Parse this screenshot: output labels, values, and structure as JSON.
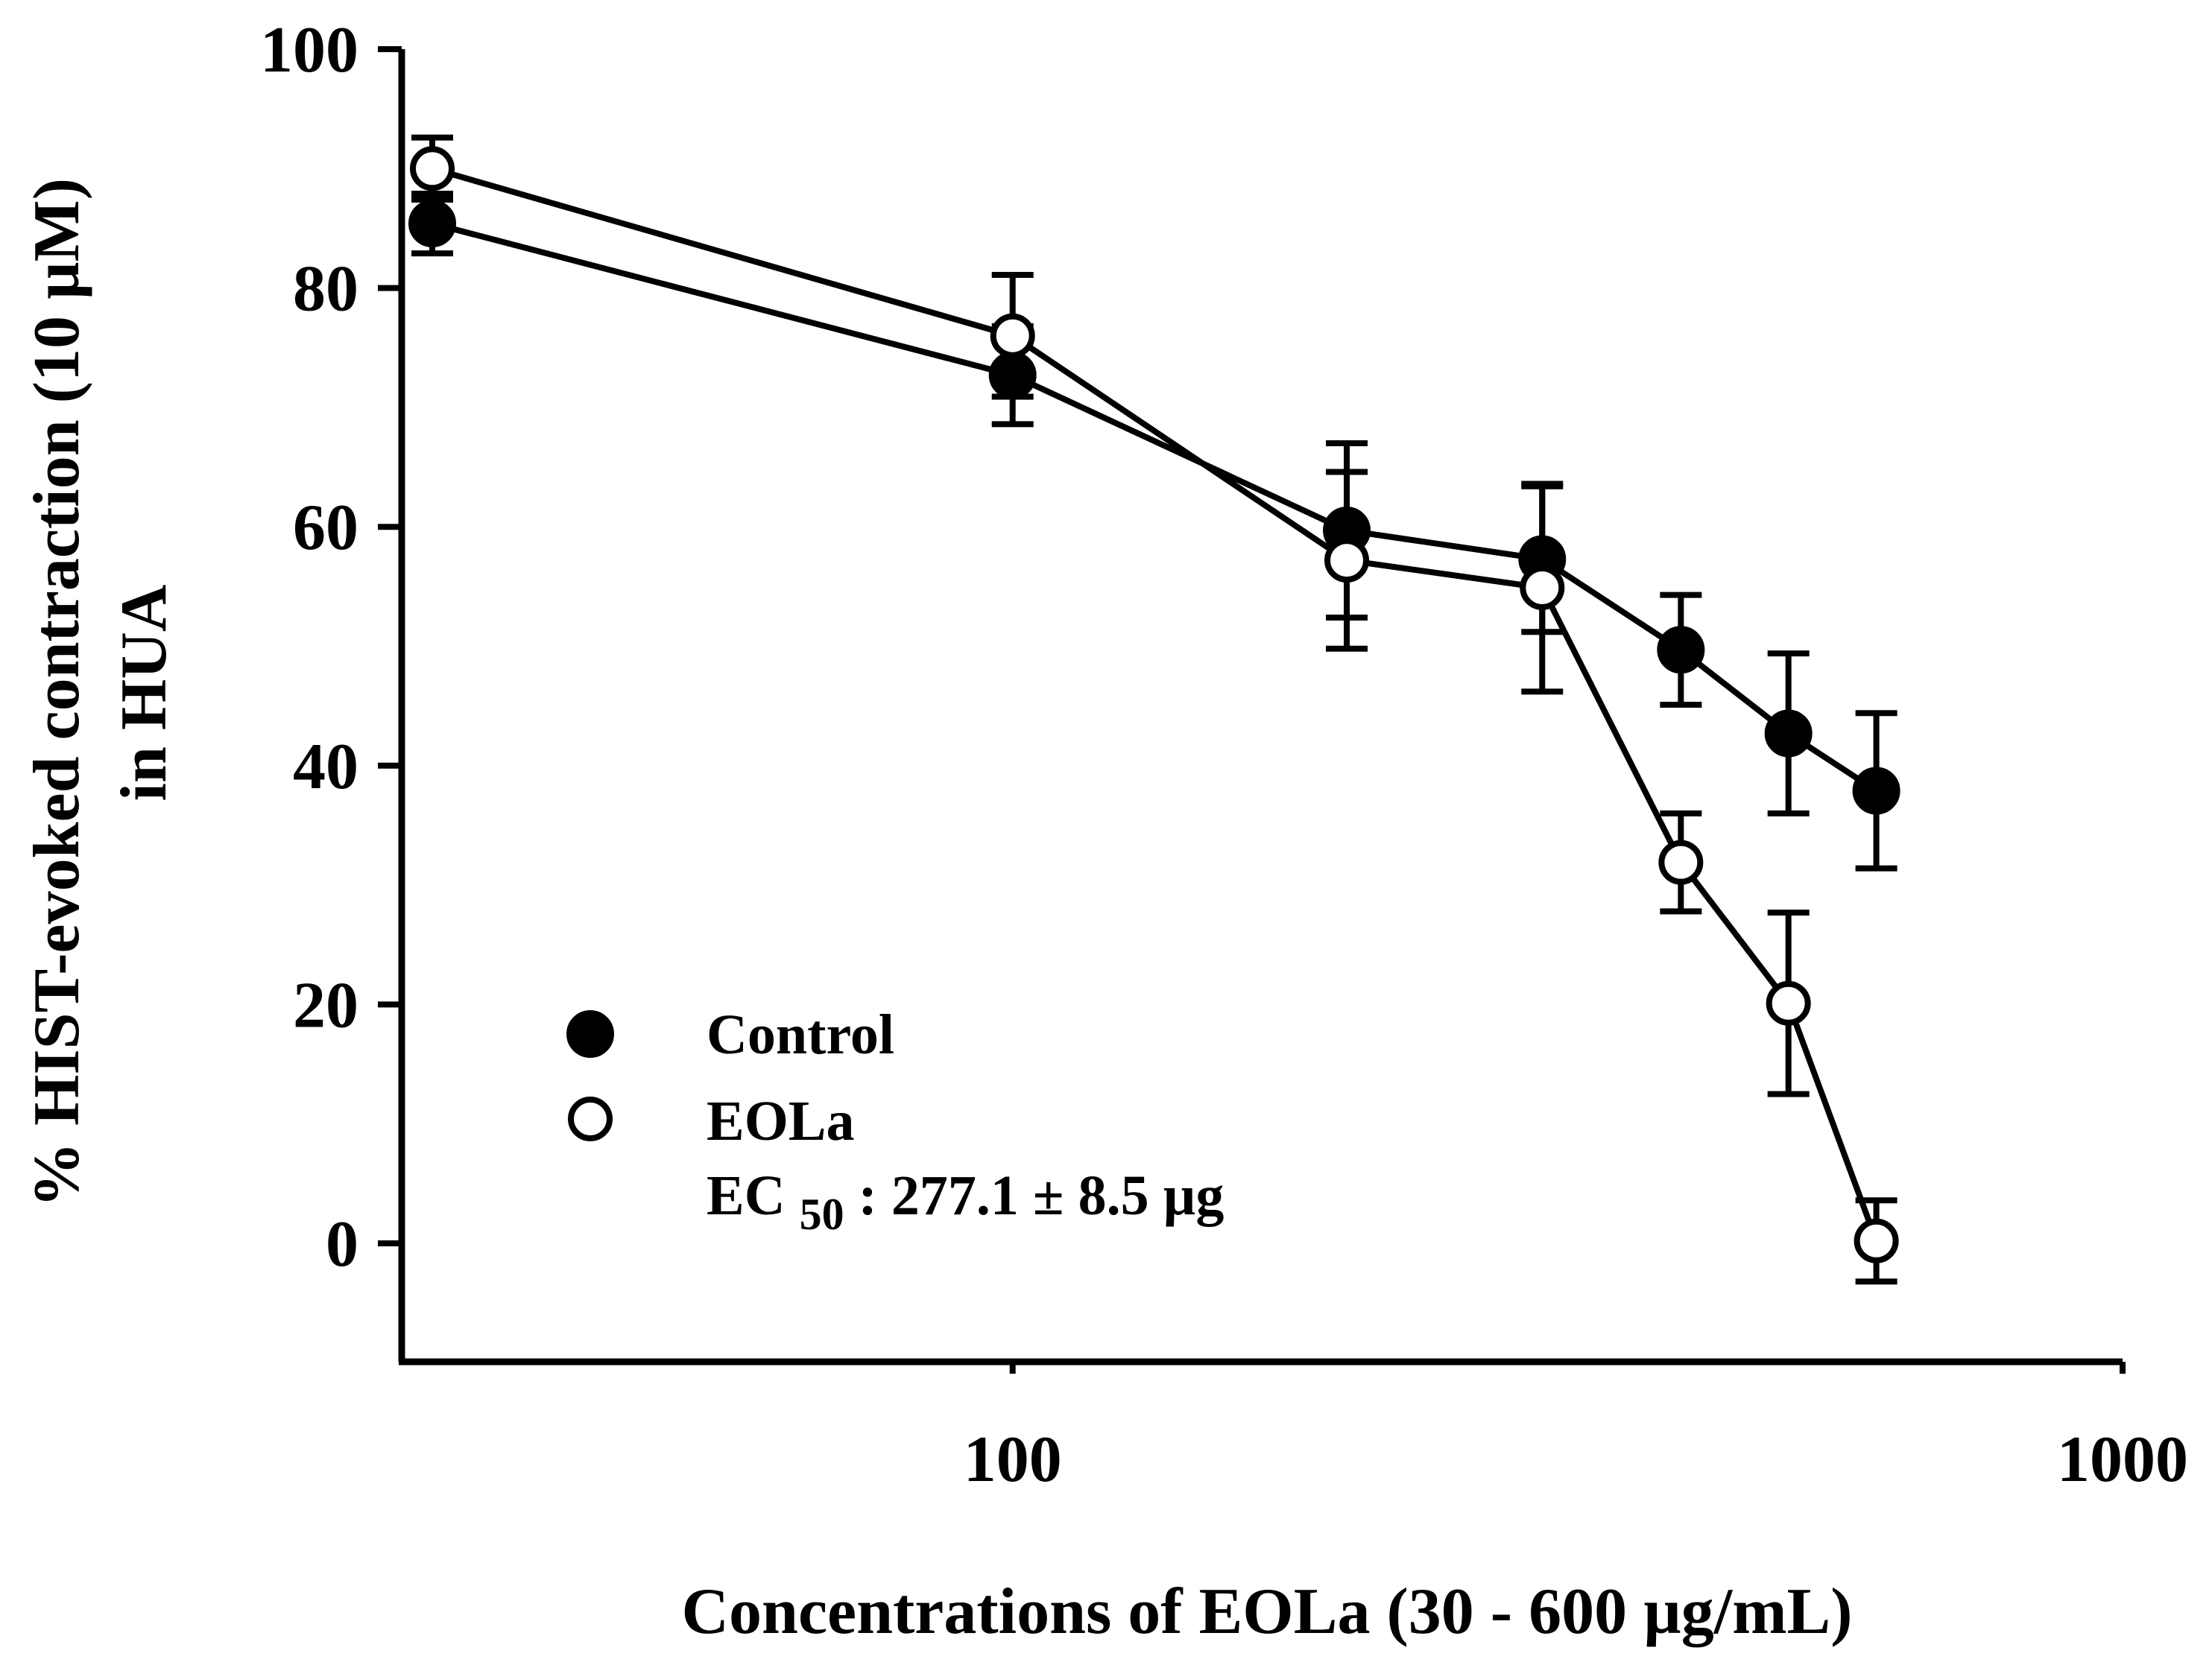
{
  "chart_data": {
    "type": "line",
    "title": "",
    "xlabel": "Concentrations of EOLa (30 - 600 µg/mL)",
    "ylabel_line1": "% HIST-evoked contraction (10 µM)",
    "ylabel_line2": "in HUA",
    "x_scale": "log",
    "xlim": [
      30,
      1000
    ],
    "ylim": [
      -10,
      100
    ],
    "x_ticks": [
      {
        "value": 100,
        "label": "100"
      },
      {
        "value": 1000,
        "label": "1000"
      }
    ],
    "y_ticks": [
      {
        "value": 0,
        "label": "0"
      },
      {
        "value": 20,
        "label": "20"
      },
      {
        "value": 40,
        "label": "40"
      },
      {
        "value": 60,
        "label": "60"
      },
      {
        "value": 80,
        "label": "80"
      },
      {
        "value": 100,
        "label": "100"
      }
    ],
    "grid": false,
    "legend_position": "lower-left",
    "series": [
      {
        "name": "Control",
        "marker": "filled-circle",
        "color": "#000000",
        "x": [
          30,
          100,
          200,
          300,
          400,
          500,
          600
        ],
        "y": [
          85.4,
          72.7,
          59.7,
          57.3,
          49.7,
          42.7,
          37.9
        ],
        "err": [
          2.5,
          4.1,
          7.3,
          6.1,
          4.6,
          6.7,
          6.5
        ]
      },
      {
        "name": "EOLa",
        "marker": "open-circle",
        "color": "#000000",
        "x": [
          30,
          100,
          200,
          300,
          400,
          500,
          600
        ],
        "y": [
          90.0,
          76.0,
          57.2,
          54.9,
          31.9,
          20.1,
          0.2
        ],
        "err": [
          2.6,
          5.1,
          7.4,
          8.7,
          4.1,
          7.6,
          3.4
        ]
      }
    ],
    "annotation": {
      "prefix": "EC",
      "subscript": "50",
      "suffix": ": 277.1 ± 8.5 µg"
    }
  }
}
